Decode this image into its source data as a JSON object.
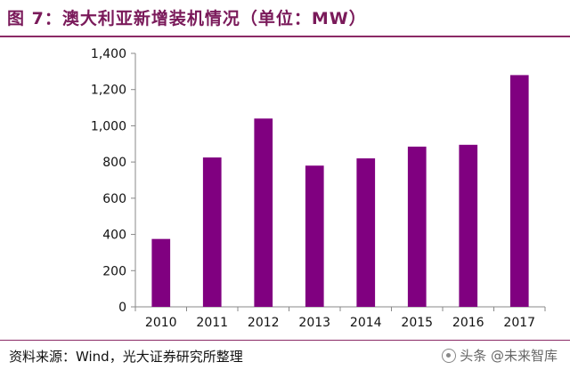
{
  "title": "图 7：澳大利亚新增装机情况（单位：MW）",
  "source": "资料来源：Wind，光大证券研究所整理",
  "watermark": "头条 @未来智库",
  "colors": {
    "bar": "#800080",
    "accent": "#8b2a66",
    "axis": "#888888"
  },
  "chart_data": {
    "type": "bar",
    "title": "图 7：澳大利亚新增装机情况（单位：MW）",
    "xlabel": "",
    "ylabel": "",
    "categories": [
      "2010",
      "2011",
      "2012",
      "2013",
      "2014",
      "2015",
      "2016",
      "2017"
    ],
    "values": [
      375,
      825,
      1040,
      780,
      820,
      885,
      895,
      1280
    ],
    "ylim": [
      0,
      1400
    ],
    "yticks": [
      0,
      200,
      400,
      600,
      800,
      1000,
      1200,
      1400
    ],
    "ytick_labels": [
      "0",
      "200",
      "400",
      "600",
      "800",
      "1,000",
      "1,200",
      "1,400"
    ],
    "grid": false,
    "legend": "none"
  }
}
